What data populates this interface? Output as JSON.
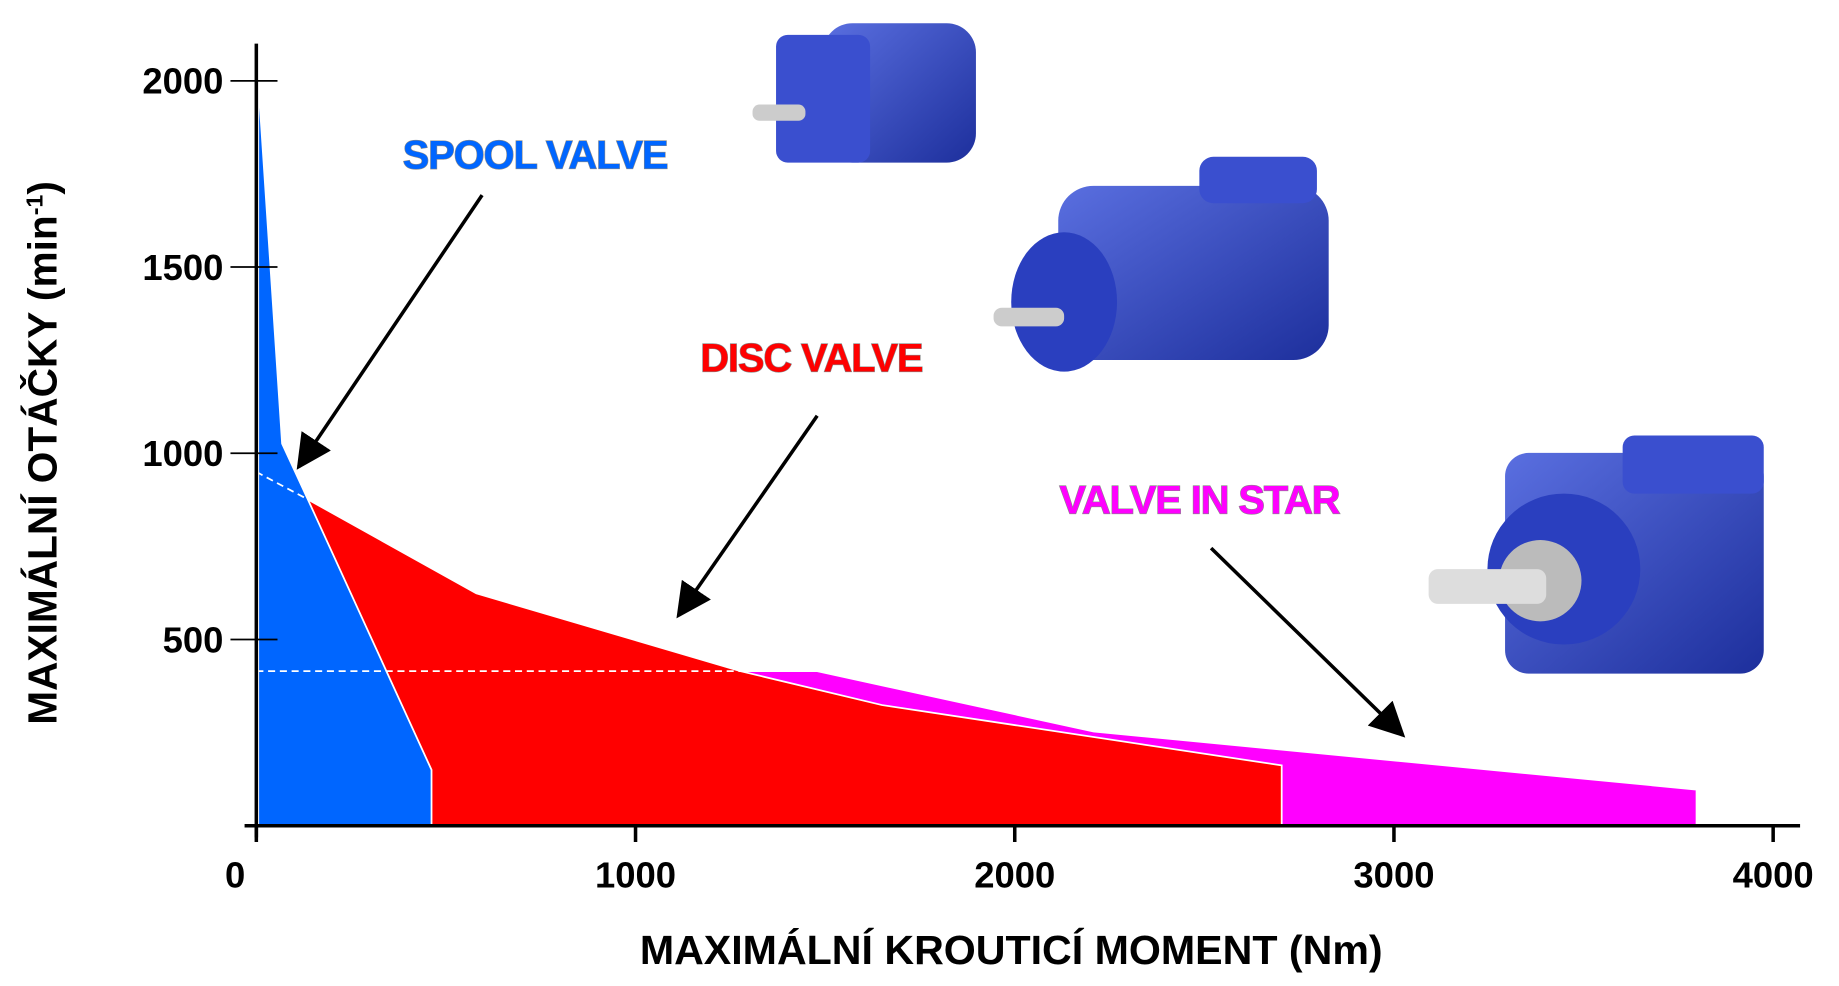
{
  "chart_data": {
    "type": "area",
    "x_label": "MAXIMÁLNÍ KROUTICÍ MOMENT (Nm)",
    "y_label": {
      "text": "MAXIMÁLNÍ OTÁČKY (min",
      "sup": "-1",
      "end": ")"
    },
    "xlim": [
      0,
      4040
    ],
    "ylim": [
      0,
      2100
    ],
    "xticks": [
      0,
      1000,
      2000,
      3000,
      4000
    ],
    "yticks": [
      500,
      1000,
      1500,
      2000
    ],
    "series": [
      {
        "name": "VALVE IN STAR",
        "color": "#ff00ff",
        "x": [
          1277,
          1479,
          2208,
          3798,
          3798
        ],
        "values": [
          415,
          415,
          253,
          97,
          0
        ]
      },
      {
        "name": "DISC VALVE",
        "color": "#ff0000",
        "x": [
          136,
          580,
          1277,
          1650,
          2704,
          2704
        ],
        "values": [
          876,
          624,
          415,
          324,
          162,
          0
        ]
      },
      {
        "name": "SPOOL VALVE",
        "color": "#0066ff",
        "x": [
          5,
          68,
          136,
          462,
          462
        ],
        "values": [
          2000,
          1026,
          876,
          150,
          0
        ]
      }
    ],
    "guides": [
      {
        "x": [
          0,
          136
        ],
        "values": [
          950,
          876
        ]
      },
      {
        "x": [
          0,
          1277
        ],
        "values": [
          415,
          415
        ]
      }
    ]
  }
}
